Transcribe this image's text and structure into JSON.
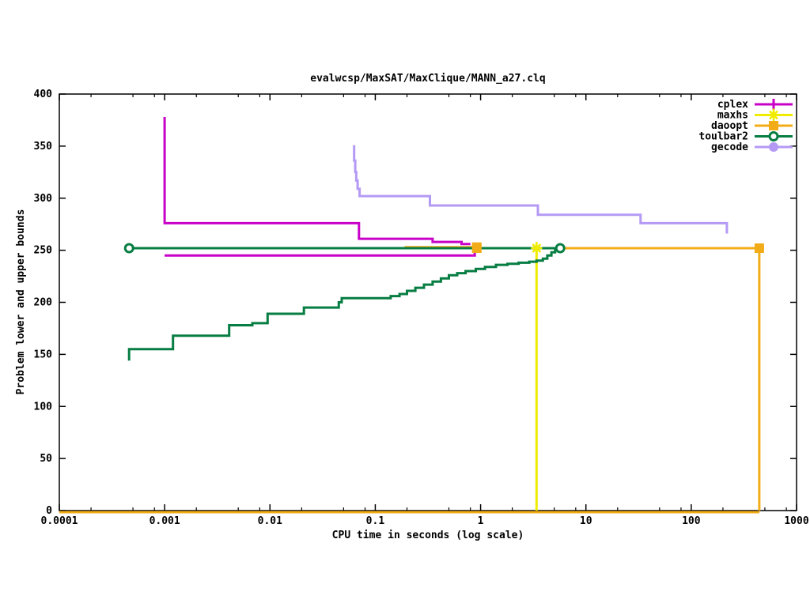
{
  "title": "evalwcsp/MaxSAT/MaxClique/MANN_a27.clq",
  "axes": {
    "xlabel": "CPU time in seconds (log scale)",
    "ylabel": "Problem lower and upper bounds",
    "x_tick_labels": [
      "0.0001",
      "0.001",
      "0.01",
      "0.1",
      "1",
      "10",
      "100",
      "1000"
    ],
    "x_tick_values": [
      0.0001,
      0.001,
      0.01,
      0.1,
      1,
      10,
      100,
      1000
    ],
    "x_minor_multipliers": [
      2,
      5,
      8
    ],
    "y_tick_labels": [
      "0",
      "50",
      "100",
      "150",
      "200",
      "250",
      "300",
      "350",
      "400"
    ],
    "y_tick_values": [
      0,
      50,
      100,
      150,
      200,
      250,
      300,
      350,
      400
    ]
  },
  "chart_data": {
    "type": "line",
    "title": "evalwcsp/MaxSAT/MaxClique/MANN_a27.clq",
    "xlabel": "CPU time in seconds (log scale)",
    "ylabel": "Problem lower and upper bounds",
    "xscale": "log",
    "xlim": [
      0.0001,
      1000
    ],
    "ylim": [
      0,
      400
    ],
    "grid": false,
    "legend_position": "top-right",
    "series": [
      {
        "name": "cplex",
        "color": "#c800c8",
        "marker": "plus",
        "lines": [
          {
            "pts": [
              [
                0.001,
                378
              ],
              [
                0.001,
                276
              ],
              [
                0.07,
                276
              ],
              [
                0.07,
                261
              ],
              [
                0.35,
                261
              ],
              [
                0.35,
                258
              ],
              [
                0.66,
                258
              ],
              [
                0.66,
                256
              ],
              [
                0.8,
                256
              ]
            ]
          },
          {
            "pts": [
              [
                0.001,
                245
              ],
              [
                0.88,
                245
              ],
              [
                0.88,
                250
              ],
              [
                0.98,
                250
              ]
            ]
          }
        ],
        "markers": []
      },
      {
        "name": "maxhs",
        "color": "#f0ec00",
        "marker": "star",
        "lines": [
          {
            "pts": [
              [
                3.3,
                252
              ],
              [
                3.4,
                252
              ]
            ]
          },
          {
            "pts": [
              [
                0.0001,
                0
              ],
              [
                3.4,
                0
              ]
            ],
            "dy": 2
          },
          {
            "pts": [
              [
                3.4,
                0
              ],
              [
                3.4,
                252
              ]
            ]
          }
        ],
        "markers": [
          [
            3.4,
            252
          ]
        ]
      },
      {
        "name": "daoopt",
        "color": "#f2ac18",
        "marker": "square",
        "lines": [
          {
            "pts": [
              [
                0.19,
                253
              ],
              [
                0.92,
                253
              ],
              [
                0.92,
                252
              ],
              [
                443,
                252
              ]
            ]
          },
          {
            "pts": [
              [
                0.0001,
                0
              ],
              [
                443,
                0
              ]
            ],
            "dy": 2
          },
          {
            "pts": [
              [
                443,
                0
              ],
              [
                443,
                252
              ]
            ]
          }
        ],
        "markers": [
          [
            0.92,
            253
          ],
          [
            0.92,
            252
          ],
          [
            443,
            252
          ]
        ]
      },
      {
        "name": "toulbar2",
        "color": "#067d42",
        "marker": "circle-open",
        "lines": [
          {
            "pts": [
              [
                0.00046,
                252
              ],
              [
                5.7,
                252
              ]
            ]
          },
          {
            "pts": [
              [
                0.00046,
                144
              ],
              [
                0.00046,
                155
              ],
              [
                0.0012,
                155
              ],
              [
                0.0012,
                168
              ],
              [
                0.0041,
                168
              ],
              [
                0.0041,
                178
              ],
              [
                0.0068,
                178
              ],
              [
                0.0068,
                180
              ],
              [
                0.0095,
                180
              ],
              [
                0.0095,
                189
              ],
              [
                0.021,
                189
              ],
              [
                0.021,
                195
              ],
              [
                0.045,
                195
              ],
              [
                0.045,
                200
              ],
              [
                0.048,
                200
              ],
              [
                0.048,
                204
              ],
              [
                0.14,
                204
              ],
              [
                0.14,
                206
              ],
              [
                0.17,
                206
              ],
              [
                0.17,
                208
              ],
              [
                0.2,
                208
              ],
              [
                0.2,
                211
              ],
              [
                0.24,
                211
              ],
              [
                0.24,
                214
              ],
              [
                0.29,
                214
              ],
              [
                0.29,
                217
              ],
              [
                0.35,
                217
              ],
              [
                0.35,
                220
              ],
              [
                0.42,
                220
              ],
              [
                0.42,
                223
              ],
              [
                0.5,
                223
              ],
              [
                0.5,
                226
              ],
              [
                0.6,
                226
              ],
              [
                0.6,
                228
              ],
              [
                0.72,
                228
              ],
              [
                0.72,
                230
              ],
              [
                0.9,
                230
              ],
              [
                0.9,
                232
              ],
              [
                1.1,
                232
              ],
              [
                1.1,
                234
              ],
              [
                1.4,
                234
              ],
              [
                1.4,
                236
              ],
              [
                1.8,
                236
              ],
              [
                1.8,
                237
              ],
              [
                2.3,
                237
              ],
              [
                2.3,
                238
              ],
              [
                2.9,
                238
              ],
              [
                2.9,
                239
              ],
              [
                3.4,
                239
              ],
              [
                3.4,
                240
              ],
              [
                3.9,
                240
              ],
              [
                3.9,
                242
              ],
              [
                4.3,
                242
              ],
              [
                4.3,
                245
              ],
              [
                4.7,
                245
              ],
              [
                4.7,
                248
              ],
              [
                5.1,
                248
              ],
              [
                5.1,
                250
              ],
              [
                5.4,
                250
              ],
              [
                5.4,
                252
              ],
              [
                5.7,
                252
              ]
            ]
          }
        ],
        "markers": [
          [
            0.00046,
            252
          ],
          [
            5.7,
            252
          ]
        ]
      },
      {
        "name": "gecode",
        "color": "#b49af5",
        "marker": "circle-filled",
        "lines": [
          {
            "pts": [
              [
                0.063,
                351
              ],
              [
                0.063,
                336
              ],
              [
                0.0645,
                336
              ],
              [
                0.0645,
                325
              ],
              [
                0.066,
                325
              ],
              [
                0.066,
                317
              ],
              [
                0.068,
                317
              ],
              [
                0.068,
                309
              ],
              [
                0.071,
                309
              ],
              [
                0.071,
                302
              ],
              [
                0.33,
                302
              ],
              [
                0.33,
                293
              ],
              [
                3.5,
                293
              ],
              [
                3.5,
                284
              ],
              [
                33,
                284
              ],
              [
                33,
                276
              ],
              [
                218,
                276
              ],
              [
                218,
                266
              ]
            ]
          }
        ],
        "markers": []
      }
    ]
  },
  "layout_note_values": {
    "optimum_bound": 252
  }
}
